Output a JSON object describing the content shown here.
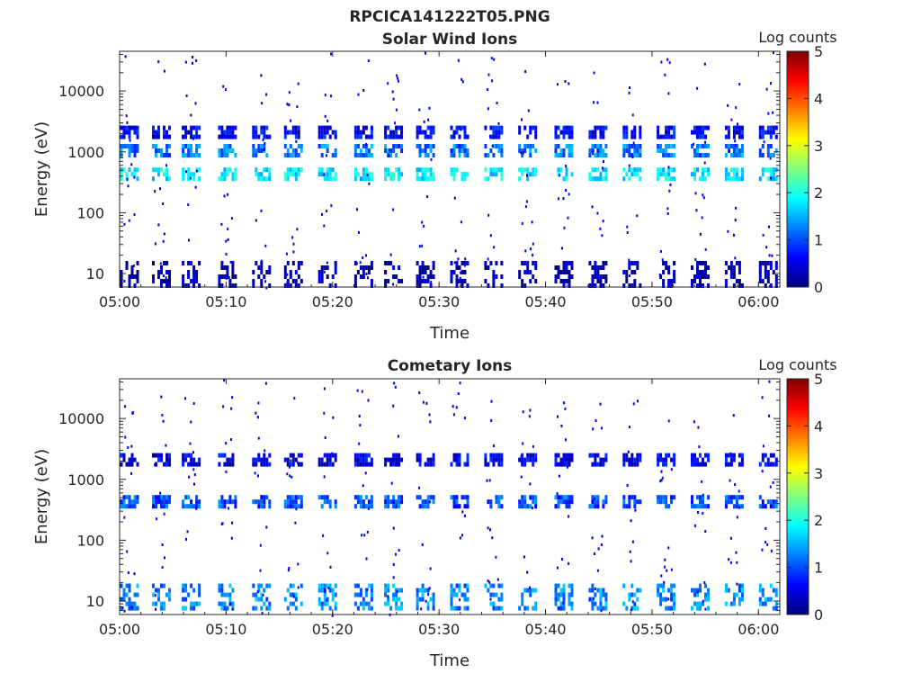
{
  "figure_title": "RPCICA141222T05.PNG",
  "colormap_stops": [
    "#00007f",
    "#0000ff",
    "#007fff",
    "#00ffff",
    "#7fff7f",
    "#ffff00",
    "#ff7f00",
    "#ff0000",
    "#7f0000"
  ],
  "chart_data": [
    {
      "type": "heatmap",
      "title": "Solar Wind Ions",
      "xlabel": "Time",
      "ylabel": "Energy (eV)",
      "x_ticks": [
        "05:00",
        "05:10",
        "05:20",
        "05:30",
        "05:40",
        "05:50",
        "06:00"
      ],
      "x_range_minutes": [
        0,
        62
      ],
      "y_scale": "log",
      "y_ticks": [
        10,
        100,
        1000,
        10000
      ],
      "y_tick_labels": [
        "10",
        "100",
        "1000",
        "10000"
      ],
      "y_range": [
        6,
        45000
      ],
      "colorbar": {
        "label": "Log counts",
        "range": [
          0,
          5
        ],
        "ticks": [
          "0",
          "1",
          "2",
          "3",
          "4",
          "5"
        ]
      },
      "sweep_minutes": [
        0.8,
        3.8,
        6.6,
        10.0,
        13.2,
        16.2,
        19.4,
        22.8,
        25.6,
        28.6,
        31.8,
        35.0,
        38.2,
        41.6,
        44.8,
        48.0,
        51.2,
        54.4,
        57.6,
        60.8
      ],
      "bands": [
        {
          "energy_eV": 450,
          "log_counts": 1.8
        },
        {
          "energy_eV": 1100,
          "log_counts": 1.2
        },
        {
          "energy_eV": 2200,
          "log_counts": 0.6
        },
        {
          "energy_eV": 10,
          "log_counts": 0.2
        }
      ]
    },
    {
      "type": "heatmap",
      "title": "Cometary Ions",
      "xlabel": "Time",
      "ylabel": "Energy (eV)",
      "x_ticks": [
        "05:00",
        "05:10",
        "05:20",
        "05:30",
        "05:40",
        "05:50",
        "06:00"
      ],
      "x_range_minutes": [
        0,
        62
      ],
      "y_scale": "log",
      "y_ticks": [
        10,
        100,
        1000,
        10000
      ],
      "y_tick_labels": [
        "10",
        "100",
        "1000",
        "10000"
      ],
      "y_range": [
        6,
        45000
      ],
      "colorbar": {
        "label": "Log counts",
        "range": [
          0,
          5
        ],
        "ticks": [
          "0",
          "1",
          "2",
          "3",
          "4",
          "5"
        ]
      },
      "sweep_minutes": [
        0.8,
        3.8,
        6.6,
        10.0,
        13.2,
        16.2,
        19.4,
        22.8,
        25.6,
        28.6,
        31.8,
        35.0,
        38.2,
        41.6,
        44.8,
        48.0,
        51.2,
        54.4,
        57.6,
        60.8
      ],
      "bands": [
        {
          "energy_eV": 450,
          "log_counts": 1.0
        },
        {
          "energy_eV": 2200,
          "log_counts": 0.5
        },
        {
          "energy_eV": 12,
          "log_counts": 1.3
        }
      ]
    }
  ]
}
